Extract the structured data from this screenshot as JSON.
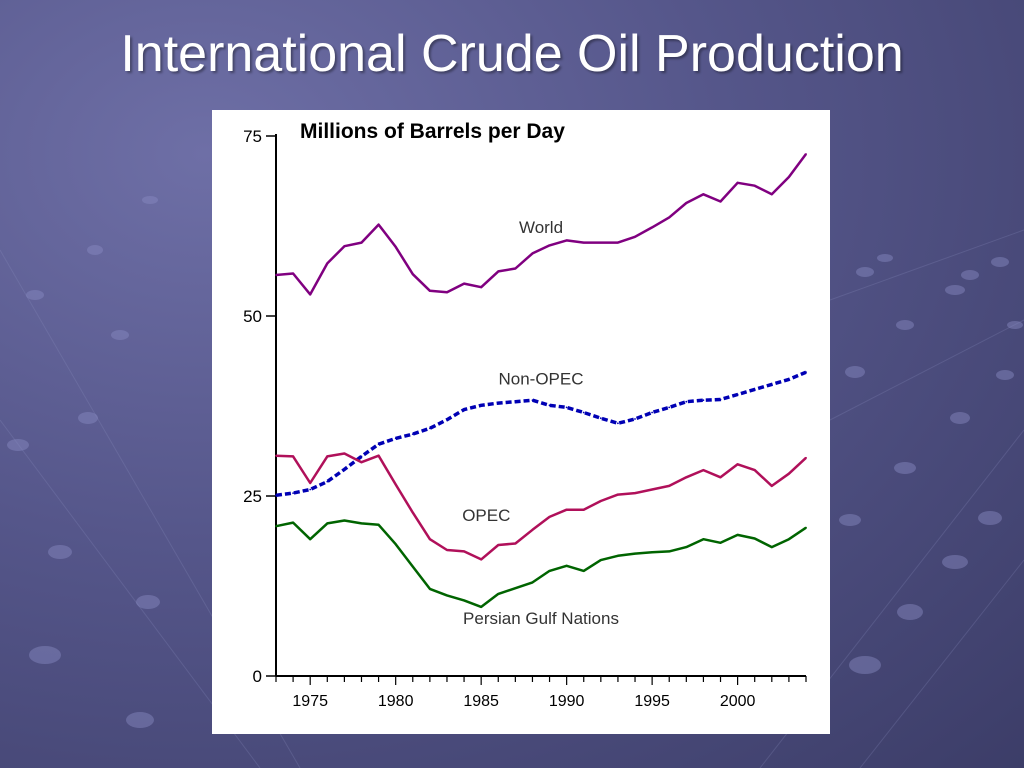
{
  "slide": {
    "title": "International Crude Oil Production"
  },
  "chart_data": {
    "type": "line",
    "title": "Millions of Barrels per Day",
    "xlabel": "",
    "ylabel": "",
    "xlim": [
      1973,
      2004
    ],
    "ylim": [
      0,
      75
    ],
    "x_ticks": [
      1975,
      1980,
      1985,
      1990,
      1995,
      2000
    ],
    "y_ticks": [
      0,
      25,
      50,
      75
    ],
    "x_tick_labels": [
      "1975",
      "1980",
      "1985",
      "1990",
      "1995",
      "2000"
    ],
    "y_tick_labels": [
      "0",
      "25",
      "50",
      "75"
    ],
    "grid": false,
    "legend": "none",
    "series": [
      {
        "name": "World",
        "color": "#800080",
        "style": "solid",
        "label_pos": [
          1988.5,
          61.5
        ],
        "points": [
          [
            1973,
            55.7
          ],
          [
            1974,
            55.9
          ],
          [
            1975,
            53.0
          ],
          [
            1976,
            57.3
          ],
          [
            1977,
            59.7
          ],
          [
            1978,
            60.2
          ],
          [
            1979,
            62.7
          ],
          [
            1980,
            59.6
          ],
          [
            1981,
            55.8
          ],
          [
            1982,
            53.5
          ],
          [
            1983,
            53.3
          ],
          [
            1984,
            54.5
          ],
          [
            1985,
            54.0
          ],
          [
            1986,
            56.2
          ],
          [
            1987,
            56.6
          ],
          [
            1988,
            58.7
          ],
          [
            1989,
            59.8
          ],
          [
            1990,
            60.5
          ],
          [
            1991,
            60.2
          ],
          [
            1992,
            60.2
          ],
          [
            1993,
            60.2
          ],
          [
            1994,
            61.0
          ],
          [
            1995,
            62.3
          ],
          [
            1996,
            63.7
          ],
          [
            1997,
            65.7
          ],
          [
            1998,
            66.9
          ],
          [
            1999,
            65.9
          ],
          [
            2000,
            68.5
          ],
          [
            2001,
            68.1
          ],
          [
            2002,
            66.9
          ],
          [
            2003,
            69.3
          ],
          [
            2004,
            72.5
          ]
        ]
      },
      {
        "name": "Non-OPEC",
        "color": "#0000b4",
        "style": "dashed",
        "label_pos": [
          1988.5,
          40.5
        ],
        "points": [
          [
            1973,
            25.1
          ],
          [
            1974,
            25.4
          ],
          [
            1975,
            25.9
          ],
          [
            1976,
            27.0
          ],
          [
            1977,
            28.7
          ],
          [
            1978,
            30.5
          ],
          [
            1979,
            32.2
          ],
          [
            1980,
            33.0
          ],
          [
            1981,
            33.6
          ],
          [
            1982,
            34.4
          ],
          [
            1983,
            35.6
          ],
          [
            1984,
            37.0
          ],
          [
            1985,
            37.6
          ],
          [
            1986,
            37.9
          ],
          [
            1987,
            38.1
          ],
          [
            1988,
            38.3
          ],
          [
            1989,
            37.6
          ],
          [
            1990,
            37.3
          ],
          [
            1991,
            36.6
          ],
          [
            1992,
            35.8
          ],
          [
            1993,
            35.1
          ],
          [
            1994,
            35.7
          ],
          [
            1995,
            36.6
          ],
          [
            1996,
            37.3
          ],
          [
            1997,
            38.1
          ],
          [
            1998,
            38.3
          ],
          [
            1999,
            38.4
          ],
          [
            2000,
            39.1
          ],
          [
            2001,
            39.8
          ],
          [
            2002,
            40.5
          ],
          [
            2003,
            41.2
          ],
          [
            2004,
            42.2
          ]
        ]
      },
      {
        "name": "OPEC",
        "color": "#b0105a",
        "style": "solid",
        "label_pos": [
          1985.3,
          21.5
        ],
        "points": [
          [
            1973,
            30.6
          ],
          [
            1974,
            30.5
          ],
          [
            1975,
            26.8
          ],
          [
            1976,
            30.5
          ],
          [
            1977,
            30.9
          ],
          [
            1978,
            29.7
          ],
          [
            1979,
            30.6
          ],
          [
            1980,
            26.6
          ],
          [
            1981,
            22.7
          ],
          [
            1982,
            19.0
          ],
          [
            1983,
            17.5
          ],
          [
            1984,
            17.3
          ],
          [
            1985,
            16.2
          ],
          [
            1986,
            18.2
          ],
          [
            1987,
            18.4
          ],
          [
            1988,
            20.3
          ],
          [
            1989,
            22.1
          ],
          [
            1990,
            23.1
          ],
          [
            1991,
            23.1
          ],
          [
            1992,
            24.3
          ],
          [
            1993,
            25.2
          ],
          [
            1994,
            25.4
          ],
          [
            1995,
            25.9
          ],
          [
            1996,
            26.4
          ],
          [
            1997,
            27.6
          ],
          [
            1998,
            28.6
          ],
          [
            1999,
            27.6
          ],
          [
            2000,
            29.4
          ],
          [
            2001,
            28.6
          ],
          [
            2002,
            26.4
          ],
          [
            2003,
            28.1
          ],
          [
            2004,
            30.3
          ]
        ]
      },
      {
        "name": "Persian Gulf Nations",
        "color": "#006400",
        "style": "solid",
        "label_pos": [
          1988.5,
          7.2
        ],
        "points": [
          [
            1973,
            20.8
          ],
          [
            1974,
            21.3
          ],
          [
            1975,
            19.0
          ],
          [
            1976,
            21.2
          ],
          [
            1977,
            21.6
          ],
          [
            1978,
            21.2
          ],
          [
            1979,
            21.0
          ],
          [
            1980,
            18.3
          ],
          [
            1981,
            15.2
          ],
          [
            1982,
            12.1
          ],
          [
            1983,
            11.2
          ],
          [
            1984,
            10.5
          ],
          [
            1985,
            9.6
          ],
          [
            1986,
            11.4
          ],
          [
            1987,
            12.2
          ],
          [
            1988,
            13.0
          ],
          [
            1989,
            14.6
          ],
          [
            1990,
            15.3
          ],
          [
            1991,
            14.6
          ],
          [
            1992,
            16.1
          ],
          [
            1993,
            16.7
          ],
          [
            1994,
            17.0
          ],
          [
            1995,
            17.2
          ],
          [
            1996,
            17.3
          ],
          [
            1997,
            17.9
          ],
          [
            1998,
            19.0
          ],
          [
            1999,
            18.5
          ],
          [
            2000,
            19.6
          ],
          [
            2001,
            19.1
          ],
          [
            2002,
            17.9
          ],
          [
            2003,
            19.0
          ],
          [
            2004,
            20.6
          ]
        ]
      }
    ]
  }
}
